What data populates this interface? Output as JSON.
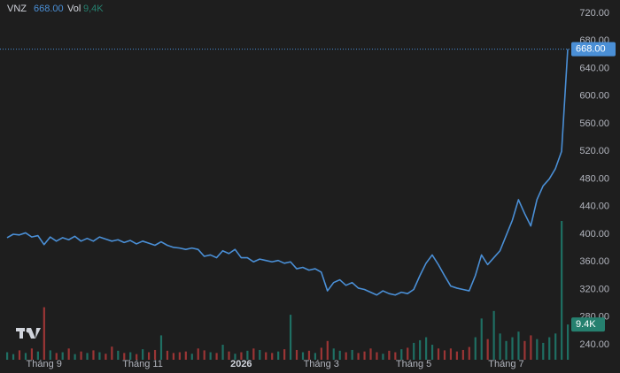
{
  "chart_data": {
    "type": "line",
    "xlim": [
      0,
      91
    ],
    "xticks": [
      {
        "value": 6,
        "label": "Tháng 9"
      },
      {
        "value": 22,
        "label": "Tháng 11"
      },
      {
        "value": 38,
        "label": "2026"
      },
      {
        "value": 51,
        "label": "Tháng 3"
      },
      {
        "value": 66,
        "label": "Tháng 5"
      },
      {
        "value": 81,
        "label": "Tháng 7"
      }
    ],
    "ylim": [
      240,
      720
    ],
    "yticks": [
      {
        "value": 240,
        "label": "240.00"
      },
      {
        "value": 280,
        "label": "280.00"
      },
      {
        "value": 320,
        "label": "320.00"
      },
      {
        "value": 360,
        "label": "360.00"
      },
      {
        "value": 400,
        "label": "400.00"
      },
      {
        "value": 440,
        "label": "440.00"
      },
      {
        "value": 480,
        "label": "480.00"
      },
      {
        "value": 520,
        "label": "520.00"
      },
      {
        "value": 560,
        "label": "560.00"
      },
      {
        "value": 600,
        "label": "600.00"
      },
      {
        "value": 640,
        "label": "640.00"
      },
      {
        "value": 680,
        "label": "680.00"
      },
      {
        "value": 720,
        "label": "720.00"
      }
    ],
    "grid": false,
    "series": [
      {
        "name": "VNZ",
        "color": "#4a8fd6",
        "last_label": "668.00",
        "values": [
          395,
          400,
          399,
          402,
          396,
          398,
          385,
          396,
          390,
          395,
          392,
          397,
          390,
          394,
          390,
          396,
          393,
          390,
          392,
          388,
          391,
          386,
          390,
          387,
          384,
          389,
          384,
          381,
          380,
          378,
          380,
          378,
          368,
          370,
          366,
          376,
          372,
          378,
          366,
          366,
          360,
          364,
          362,
          360,
          362,
          358,
          360,
          350,
          352,
          348,
          350,
          345,
          318,
          330,
          334,
          326,
          330,
          322,
          320,
          316,
          312,
          318,
          314,
          312,
          316,
          314,
          320,
          340,
          358,
          370,
          356,
          340,
          325,
          322,
          320,
          318,
          340,
          370,
          356,
          366,
          376,
          398,
          420,
          450,
          430,
          412,
          450,
          470,
          480,
          495,
          520,
          668
        ]
      },
      {
        "name": "Vol",
        "type": "volume",
        "up_color": "#1f6f63",
        "down_color": "#9b3535",
        "legend_label": "9,4K",
        "last_label": "9.4K",
        "label_color": "#26806f",
        "values": [
          2000,
          1500,
          2500,
          1800,
          3000,
          2200,
          14000,
          2500,
          1800,
          2000,
          3000,
          1500,
          2200,
          1800,
          2500,
          2000,
          1600,
          3500,
          2400,
          1800,
          2000,
          1500,
          2800,
          2000,
          2600,
          6500,
          2400,
          1800,
          2000,
          2200,
          1600,
          3000,
          2500,
          2000,
          1800,
          4000,
          2200,
          1600,
          2000,
          2400,
          3000,
          2600,
          2000,
          1800,
          2200,
          2800,
          12000,
          2600,
          2000,
          2400,
          1800,
          3200,
          5000,
          3000,
          2400,
          2000,
          2600,
          1800,
          2200,
          3000,
          2000,
          1600,
          2400,
          2000,
          2800,
          3200,
          4500,
          5200,
          6000,
          4000,
          3000,
          2500,
          3000,
          2200,
          2600,
          3400,
          6000,
          11000,
          5500,
          13000,
          7000,
          5000,
          6000,
          7500,
          5000,
          6500,
          5500,
          4500,
          6000,
          7000,
          37000,
          9400
        ]
      }
    ]
  }
}
